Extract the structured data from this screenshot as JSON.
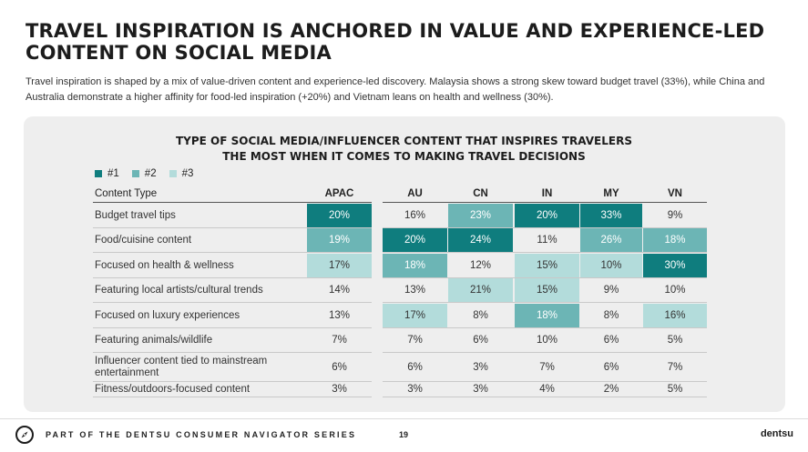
{
  "header": {
    "title": "TRAVEL INSPIRATION IS ANCHORED IN VALUE AND EXPERIENCE-LED CONTENT ON SOCIAL MEDIA",
    "subtitle": "Travel inspiration is shaped by a mix of value-driven content and experience-led discovery. Malaysia shows a strong skew toward budget travel (33%), while China and Australia demonstrate a higher affinity for food-led inspiration (+20%) and Vietnam leans on health and wellness (30%)."
  },
  "colors": {
    "rank1": "#0f7d7e",
    "rank2": "#6cb5b5",
    "rank3": "#b3dcdb",
    "panel": "#eeeeee"
  },
  "chart_data": {
    "type": "table",
    "title": "TYPE OF SOCIAL MEDIA/INFLUENCER CONTENT THAT INSPIRES TRAVELERS THE MOST WHEN IT COMES TO MAKING TRAVEL DECISIONS",
    "title_line1": "TYPE OF SOCIAL MEDIA/INFLUENCER CONTENT THAT INSPIRES TRAVELERS",
    "title_line2": "THE MOST WHEN IT COMES TO MAKING TRAVEL DECISIONS",
    "legend": [
      "#1",
      "#2",
      "#3"
    ],
    "row_header": "Content Type",
    "columns": [
      "APAC",
      "AU",
      "CN",
      "IN",
      "MY",
      "VN"
    ],
    "rows": [
      {
        "label": "Budget travel tips",
        "values": [
          "20%",
          "16%",
          "23%",
          "20%",
          "33%",
          "9%"
        ],
        "ranks": [
          1,
          0,
          2,
          1,
          1,
          0
        ]
      },
      {
        "label": "Food/cuisine content",
        "values": [
          "19%",
          "20%",
          "24%",
          "11%",
          "26%",
          "18%"
        ],
        "ranks": [
          2,
          1,
          1,
          0,
          2,
          2
        ]
      },
      {
        "label": "Focused on health & wellness",
        "values": [
          "17%",
          "18%",
          "12%",
          "15%",
          "10%",
          "30%"
        ],
        "ranks": [
          3,
          2,
          0,
          3,
          3,
          1
        ]
      },
      {
        "label": "Featuring local artists/cultural trends",
        "values": [
          "14%",
          "13%",
          "21%",
          "15%",
          "9%",
          "10%"
        ],
        "ranks": [
          0,
          0,
          3,
          3,
          0,
          0
        ]
      },
      {
        "label": "Focused on luxury experiences",
        "values": [
          "13%",
          "17%",
          "8%",
          "18%",
          "8%",
          "16%"
        ],
        "ranks": [
          0,
          3,
          0,
          2,
          0,
          3
        ]
      },
      {
        "label": "Featuring animals/wildlife",
        "values": [
          "7%",
          "7%",
          "6%",
          "10%",
          "6%",
          "5%"
        ],
        "ranks": [
          0,
          0,
          0,
          0,
          0,
          0
        ]
      },
      {
        "label": "Influencer content tied to mainstream entertainment",
        "values": [
          "6%",
          "6%",
          "3%",
          "7%",
          "6%",
          "7%"
        ],
        "ranks": [
          0,
          0,
          0,
          0,
          0,
          0
        ]
      },
      {
        "label": "Fitness/outdoors-focused content",
        "values": [
          "3%",
          "3%",
          "3%",
          "4%",
          "2%",
          "5%"
        ],
        "ranks": [
          0,
          0,
          0,
          0,
          0,
          0
        ]
      }
    ]
  },
  "footer": {
    "series_text": "PART OF THE DENTSU CONSUMER NAVIGATOR SERIES",
    "page_number": "19",
    "brand": "dentsu",
    "icon": "compass-icon"
  }
}
